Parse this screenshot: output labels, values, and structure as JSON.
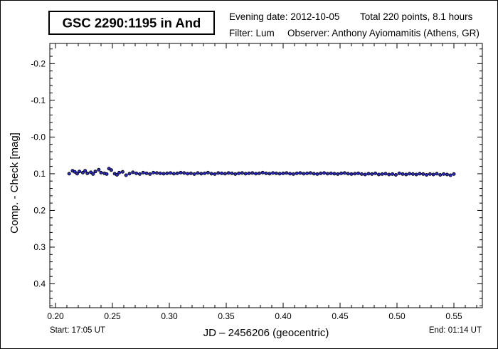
{
  "header": {
    "title": "GSC 2290:1195 in And",
    "evening_date": "Evening date: 2012-10-05",
    "total": "Total 220 points, 8.1 hours",
    "filter": "Filter: Lum",
    "observer": "Observer: Anthony Ayiomamitis (Athens, GR)"
  },
  "footer": {
    "start": "Start: 17:05 UT",
    "end": "End: 01:14 UT"
  },
  "colors": {
    "point_fill": "#2a2acc",
    "point_stroke": "#000000"
  },
  "chart_data": {
    "type": "scatter",
    "title": "GSC 2290:1195 in And",
    "xlabel": "JD – 2456206  (geocentric)",
    "ylabel": "Comp. - Check [mag]",
    "xlim": [
      0.195,
      0.575
    ],
    "ylim": [
      -0.255,
      0.465
    ],
    "y_inverted": true,
    "xticks": [
      0.2,
      0.25,
      0.3,
      0.35,
      0.4,
      0.45,
      0.5,
      0.55
    ],
    "xtick_labels": [
      "0.20",
      "0.25",
      "0.30",
      "0.35",
      "0.40",
      "0.45",
      "0.50",
      "0.55"
    ],
    "yticks": [
      -0.2,
      -0.1,
      0.0,
      0.1,
      0.2,
      0.3,
      0.4
    ],
    "ytick_labels": [
      "-0.2",
      "-0.1",
      "-0.0",
      "0.1",
      "0.2",
      "0.3",
      "0.4"
    ],
    "grid": false,
    "x": [
      0.212,
      0.215,
      0.217,
      0.219,
      0.221,
      0.224,
      0.226,
      0.228,
      0.231,
      0.233,
      0.235,
      0.238,
      0.24,
      0.243,
      0.245,
      0.247,
      0.249,
      0.252,
      0.254,
      0.256,
      0.259,
      0.262,
      0.265,
      0.268,
      0.271,
      0.274,
      0.277,
      0.28,
      0.283,
      0.286,
      0.289,
      0.292,
      0.295,
      0.298,
      0.301,
      0.304,
      0.307,
      0.31,
      0.313,
      0.316,
      0.319,
      0.322,
      0.325,
      0.328,
      0.331,
      0.334,
      0.337,
      0.34,
      0.343,
      0.346,
      0.349,
      0.352,
      0.355,
      0.358,
      0.361,
      0.364,
      0.367,
      0.37,
      0.373,
      0.376,
      0.379,
      0.382,
      0.385,
      0.388,
      0.391,
      0.394,
      0.397,
      0.4,
      0.403,
      0.406,
      0.409,
      0.412,
      0.415,
      0.418,
      0.421,
      0.424,
      0.427,
      0.43,
      0.433,
      0.436,
      0.439,
      0.442,
      0.445,
      0.448,
      0.451,
      0.454,
      0.457,
      0.46,
      0.463,
      0.466,
      0.469,
      0.472,
      0.475,
      0.478,
      0.481,
      0.484,
      0.487,
      0.49,
      0.493,
      0.496,
      0.499,
      0.502,
      0.505,
      0.508,
      0.511,
      0.514,
      0.517,
      0.52,
      0.523,
      0.526,
      0.529,
      0.532,
      0.535,
      0.538,
      0.541,
      0.544,
      0.547,
      0.55
    ],
    "y": [
      0.1,
      0.092,
      0.095,
      0.1,
      0.094,
      0.097,
      0.092,
      0.099,
      0.096,
      0.101,
      0.094,
      0.089,
      0.097,
      0.099,
      0.101,
      0.086,
      0.09,
      0.1,
      0.103,
      0.097,
      0.095,
      0.104,
      0.1,
      0.096,
      0.099,
      0.101,
      0.097,
      0.099,
      0.101,
      0.097,
      0.098,
      0.099,
      0.1,
      0.099,
      0.098,
      0.1,
      0.099,
      0.097,
      0.098,
      0.1,
      0.099,
      0.101,
      0.098,
      0.1,
      0.099,
      0.097,
      0.1,
      0.101,
      0.098,
      0.099,
      0.1,
      0.098,
      0.099,
      0.101,
      0.099,
      0.098,
      0.1,
      0.099,
      0.098,
      0.1,
      0.099,
      0.097,
      0.099,
      0.1,
      0.098,
      0.099,
      0.1,
      0.099,
      0.098,
      0.1,
      0.101,
      0.099,
      0.098,
      0.1,
      0.099,
      0.098,
      0.1,
      0.101,
      0.099,
      0.098,
      0.1,
      0.099,
      0.1,
      0.101,
      0.099,
      0.098,
      0.1,
      0.101,
      0.1,
      0.099,
      0.101,
      0.102,
      0.1,
      0.101,
      0.099,
      0.102,
      0.101,
      0.1,
      0.102,
      0.101,
      0.103,
      0.099,
      0.101,
      0.102,
      0.1,
      0.101,
      0.102,
      0.1,
      0.101,
      0.103,
      0.101,
      0.102,
      0.1,
      0.103,
      0.101,
      0.102,
      0.104,
      0.101
    ]
  }
}
